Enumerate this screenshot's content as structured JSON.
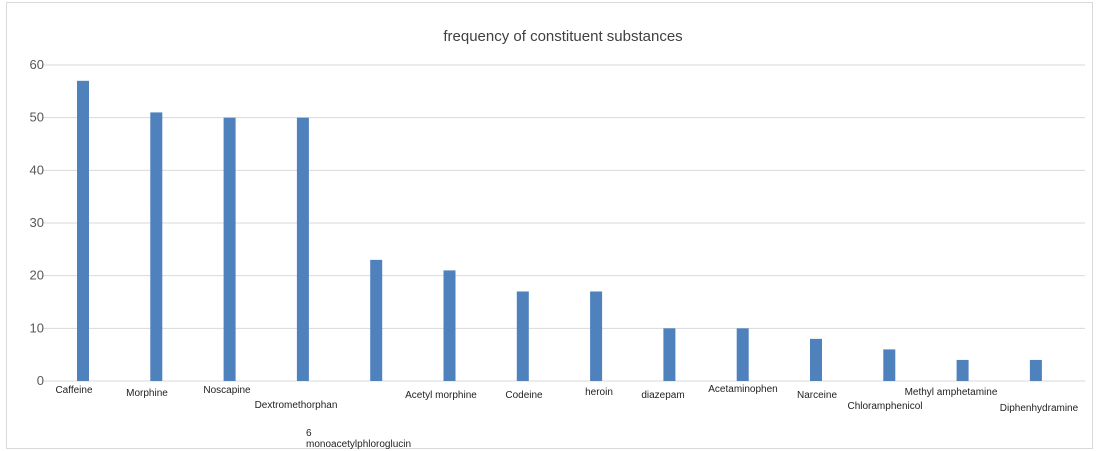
{
  "chart_data": {
    "type": "bar",
    "title": "frequency of constituent substances",
    "xlabel": "",
    "ylabel": "",
    "ylim": [
      0,
      60
    ],
    "yticks": [
      0,
      10,
      20,
      30,
      40,
      50,
      60
    ],
    "grid": true,
    "legend": "none",
    "bar_color": "#4f81bd",
    "categories": [
      "Caffeine",
      "Morphine",
      "Noscapine",
      "Dextromethorphan",
      "6 monoacetylphloroglucin",
      "Acetyl morphine",
      "Codeine",
      "heroin",
      "diazepam",
      "Acetaminophen",
      "Narceine",
      "Chloramphenicol",
      "Methyl amphetamine",
      "Diphenhydramine"
    ],
    "values": [
      57,
      51,
      50,
      50,
      23,
      21,
      17,
      17,
      10,
      10,
      8,
      6,
      4,
      4
    ]
  }
}
